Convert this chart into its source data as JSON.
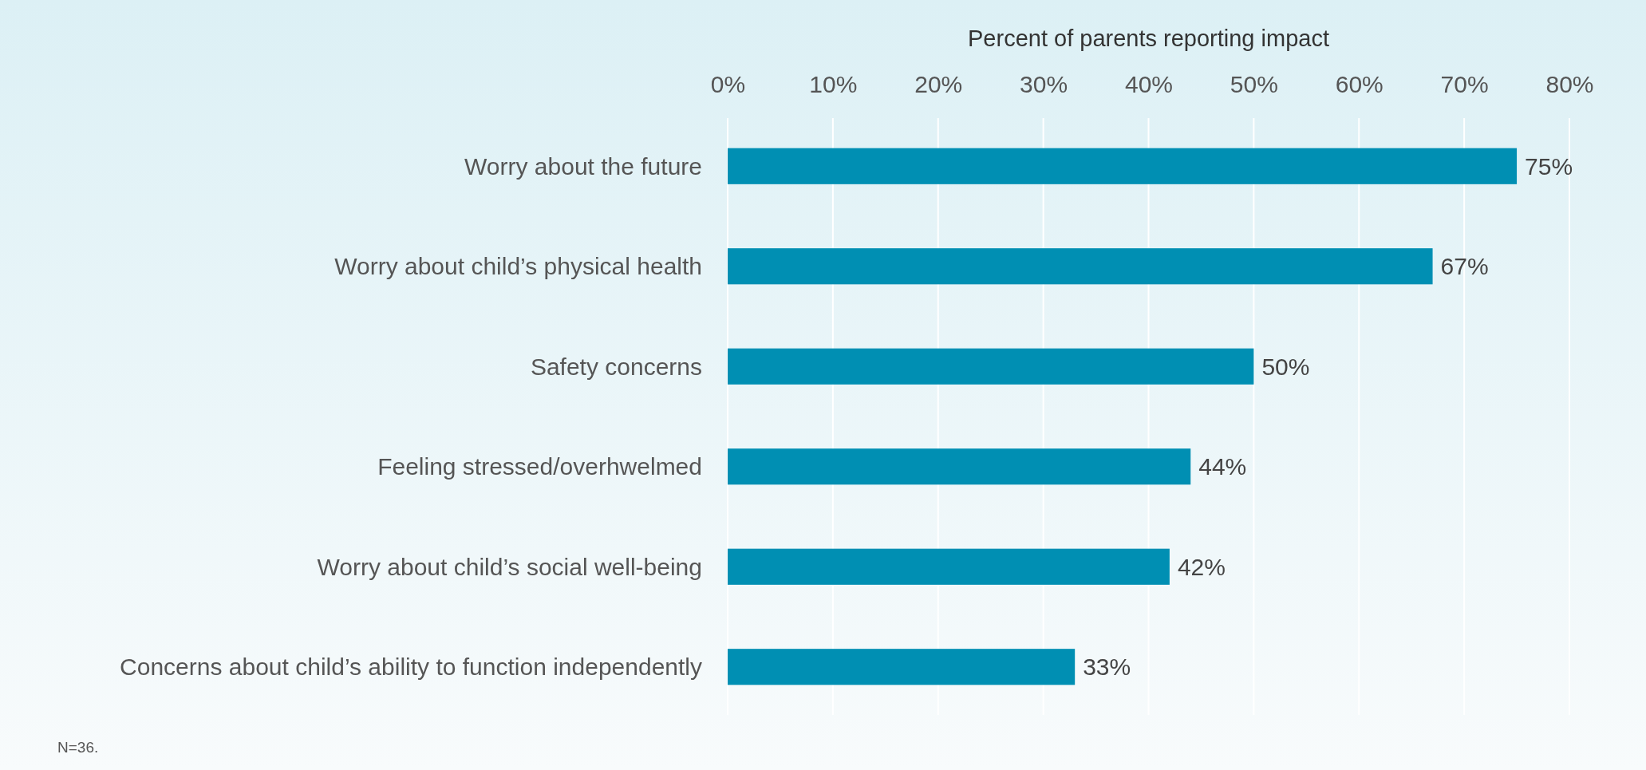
{
  "chart_data": {
    "type": "bar",
    "orientation": "horizontal",
    "xlabel": "Percent of parents reporting impact",
    "categories": [
      "Worry about the future",
      "Worry about child’s physical health",
      "Safety concerns",
      "Feeling stressed/overhwelmed",
      "Worry about child’s social well-being",
      "Concerns about child’s ability to function independently"
    ],
    "values": [
      75,
      67,
      50,
      44,
      42,
      33
    ],
    "value_labels": [
      "75%",
      "67%",
      "50%",
      "44%",
      "42%",
      "33%"
    ],
    "color": "#008fb3",
    "xlim": [
      0,
      80
    ],
    "xticks": [
      {
        "value": 0,
        "label": "0%"
      },
      {
        "value": 10,
        "label": "10%"
      },
      {
        "value": 20,
        "label": "20%"
      },
      {
        "value": 30,
        "label": "30%"
      },
      {
        "value": 40,
        "label": "40%"
      },
      {
        "value": 50,
        "label": "50%"
      },
      {
        "value": 60,
        "label": "60%"
      },
      {
        "value": 70,
        "label": "70%"
      },
      {
        "value": 80,
        "label": "80%"
      }
    ],
    "grid": "x",
    "annotations": [
      "N=36."
    ]
  }
}
